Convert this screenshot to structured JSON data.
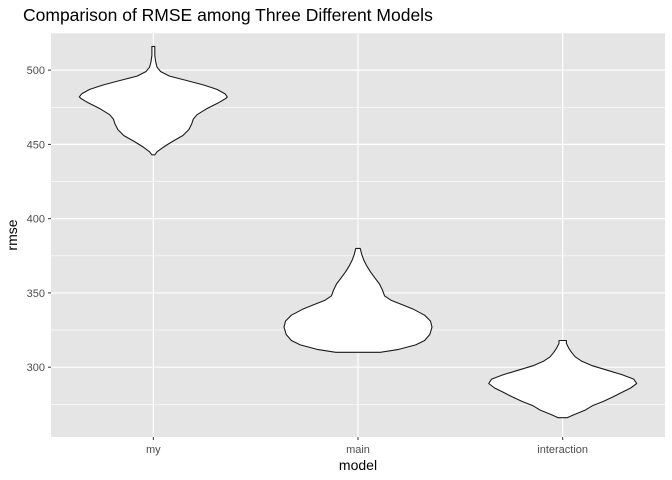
{
  "chart_data": {
    "type": "violin",
    "title": "Comparison of RMSE among Three Different Models",
    "xlabel": "model",
    "ylabel": "rmse",
    "categories": [
      "my",
      "main",
      "interaction"
    ],
    "ylim": [
      253,
      525
    ],
    "yticks": [
      300,
      350,
      400,
      450,
      500
    ],
    "grid": true,
    "background": "#e5e5e5",
    "grid_color": "#ffffff",
    "violin_fill": "#ffffff",
    "violin_stroke": "#1a1a1a",
    "violins": [
      {
        "category": "my",
        "min": 443,
        "max": 516,
        "profile": [
          [
            443,
            0.02
          ],
          [
            445,
            0.05
          ],
          [
            448,
            0.13
          ],
          [
            452,
            0.26
          ],
          [
            456,
            0.4
          ],
          [
            460,
            0.48
          ],
          [
            464,
            0.52
          ],
          [
            467,
            0.54
          ],
          [
            470,
            0.59
          ],
          [
            474,
            0.72
          ],
          [
            478,
            0.88
          ],
          [
            481,
            0.98
          ],
          [
            482,
            1.0
          ],
          [
            484,
            0.97
          ],
          [
            487,
            0.86
          ],
          [
            490,
            0.68
          ],
          [
            493,
            0.45
          ],
          [
            496,
            0.22
          ],
          [
            499,
            0.1
          ],
          [
            502,
            0.05
          ],
          [
            506,
            0.03
          ],
          [
            510,
            0.02
          ],
          [
            516,
            0.02
          ]
        ]
      },
      {
        "category": "main",
        "min": 310,
        "max": 380,
        "profile": [
          [
            310,
            0.3
          ],
          [
            312,
            0.55
          ],
          [
            315,
            0.78
          ],
          [
            318,
            0.9
          ],
          [
            322,
            0.97
          ],
          [
            327,
            1.0
          ],
          [
            331,
            0.98
          ],
          [
            335,
            0.9
          ],
          [
            339,
            0.75
          ],
          [
            342,
            0.6
          ],
          [
            345,
            0.45
          ],
          [
            348,
            0.36
          ],
          [
            352,
            0.33
          ],
          [
            356,
            0.29
          ],
          [
            360,
            0.23
          ],
          [
            364,
            0.17
          ],
          [
            368,
            0.12
          ],
          [
            372,
            0.08
          ],
          [
            376,
            0.05
          ],
          [
            380,
            0.03
          ]
        ]
      },
      {
        "category": "interaction",
        "min": 266,
        "max": 318,
        "profile": [
          [
            266,
            0.06
          ],
          [
            268,
            0.15
          ],
          [
            271,
            0.3
          ],
          [
            274,
            0.4
          ],
          [
            277,
            0.55
          ],
          [
            280,
            0.68
          ],
          [
            283,
            0.8
          ],
          [
            286,
            0.92
          ],
          [
            289,
            1.0
          ],
          [
            292,
            0.96
          ],
          [
            295,
            0.8
          ],
          [
            298,
            0.6
          ],
          [
            301,
            0.4
          ],
          [
            304,
            0.26
          ],
          [
            307,
            0.17
          ],
          [
            310,
            0.12
          ],
          [
            313,
            0.08
          ],
          [
            316,
            0.05
          ],
          [
            318,
            0.05
          ]
        ]
      }
    ]
  }
}
